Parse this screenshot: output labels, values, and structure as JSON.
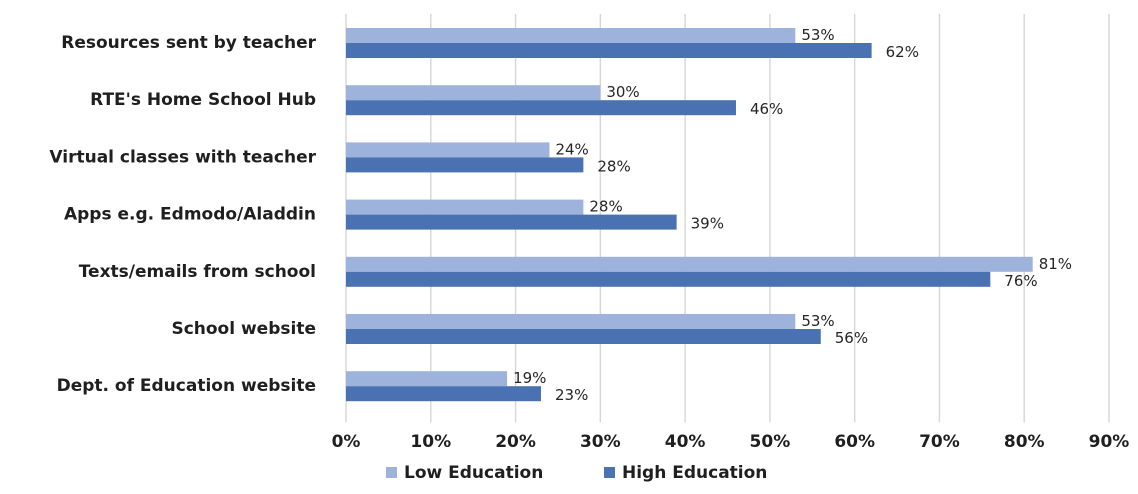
{
  "chart_data": {
    "type": "bar",
    "orientation": "horizontal",
    "categories": [
      "Resources sent by teacher",
      "RTE's Home School Hub",
      "Virtual classes with teacher",
      "Apps e.g. Edmodo/Aladdin",
      "Texts/emails from school",
      "School website",
      "Dept. of Education website"
    ],
    "series": [
      {
        "name": "Low Education",
        "color": "#9eb3dc",
        "values": [
          53,
          30,
          24,
          28,
          81,
          53,
          19
        ],
        "labels": [
          "53%",
          "30%",
          "24%",
          "28%",
          "81%",
          "53%",
          "19%"
        ]
      },
      {
        "name": "High Education",
        "color": "#4a72b2",
        "values": [
          62,
          46,
          28,
          39,
          76,
          56,
          23
        ],
        "labels": [
          "62%",
          "46%",
          "28%",
          "39%",
          "76%",
          "56%",
          "23%"
        ]
      }
    ],
    "xlim": [
      0,
      90
    ],
    "xticks": [
      0,
      10,
      20,
      30,
      40,
      50,
      60,
      70,
      80,
      90
    ],
    "xtick_labels": [
      "0%",
      "10%",
      "20%",
      "30%",
      "40%",
      "50%",
      "60%",
      "70%",
      "80%",
      "90%"
    ],
    "grid": true,
    "legend": "bottom",
    "title": "",
    "xlabel": "",
    "ylabel": ""
  }
}
